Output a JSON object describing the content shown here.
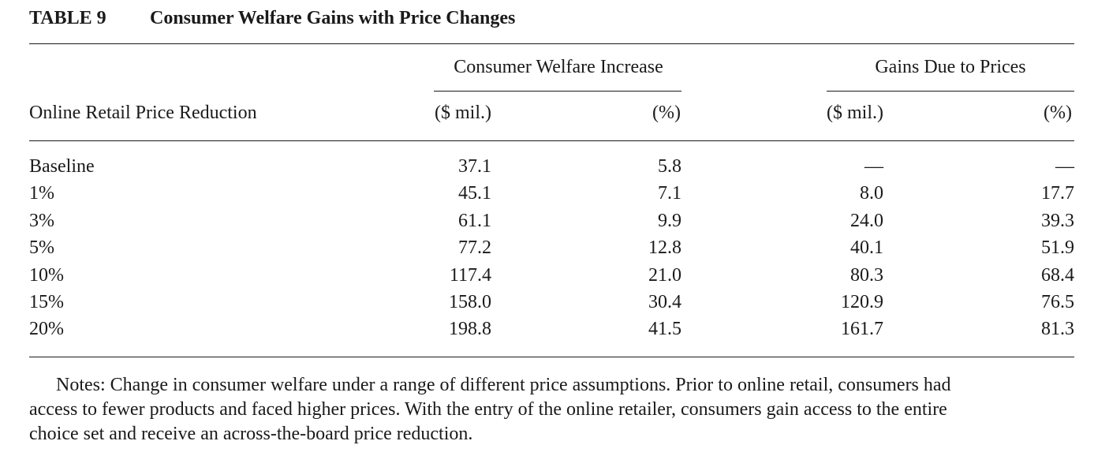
{
  "table": {
    "label": "TABLE 9",
    "title": "Consumer Welfare Gains with Price Changes",
    "group_headers": [
      "Consumer Welfare Increase",
      "Gains Due to Prices"
    ],
    "row_header": "Online Retail Price Reduction",
    "column_units": [
      "($ mil.)",
      "(%)",
      "($ mil.)",
      "(%)"
    ],
    "rows": [
      {
        "label": "Baseline",
        "cw_mil": "37.1",
        "cw_pct": "5.8",
        "gp_mil": "—",
        "gp_pct": "—"
      },
      {
        "label": "1%",
        "cw_mil": "45.1",
        "cw_pct": "7.1",
        "gp_mil": "8.0",
        "gp_pct": "17.7"
      },
      {
        "label": "3%",
        "cw_mil": "61.1",
        "cw_pct": "9.9",
        "gp_mil": "24.0",
        "gp_pct": "39.3"
      },
      {
        "label": "5%",
        "cw_mil": "77.2",
        "cw_pct": "12.8",
        "gp_mil": "40.1",
        "gp_pct": "51.9"
      },
      {
        "label": "10%",
        "cw_mil": "117.4",
        "cw_pct": "21.0",
        "gp_mil": "80.3",
        "gp_pct": "68.4"
      },
      {
        "label": "15%",
        "cw_mil": "158.0",
        "cw_pct": "30.4",
        "gp_mil": "120.9",
        "gp_pct": "76.5"
      },
      {
        "label": "20%",
        "cw_mil": "198.8",
        "cw_pct": "41.5",
        "gp_mil": "161.7",
        "gp_pct": "81.3"
      }
    ],
    "notes_lines": [
      "Notes: Change in consumer welfare under a range of different price assumptions. Prior to online retail, consumers had",
      "access to fewer products and faced higher prices. With the entry of the online retailer, consumers gain access to the entire",
      "choice set and receive an across-the-board price reduction."
    ]
  }
}
